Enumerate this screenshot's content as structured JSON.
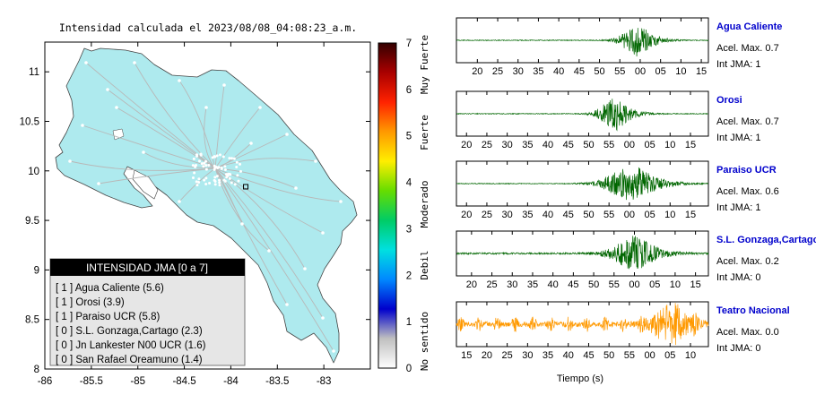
{
  "map": {
    "title": "Intensidad calculada el 2023/08/08_04:08:23_a.m.",
    "x_ticks": [
      "-86",
      "-85.5",
      "-85",
      "-84.5",
      "-84",
      "-83.5",
      "-83"
    ],
    "y_ticks": [
      "11",
      "10.5",
      "10",
      "9.5",
      "9",
      "8.5",
      "8"
    ],
    "xlim": [
      -86,
      -82.5
    ],
    "ylim": [
      8,
      11.3
    ],
    "land_color": "#aeeaee",
    "sea_color": "#ffffff",
    "station_marker": {
      "lon": -83.84,
      "lat": 9.84
    }
  },
  "colorbar": {
    "ticks": [
      "0",
      "1",
      "2",
      "3",
      "4",
      "5",
      "6",
      "7"
    ],
    "category_labels": [
      "No sentido",
      "Debil",
      "Moderado",
      "Fuerte",
      "Muy Fuerte"
    ],
    "colors": [
      "#ffffff",
      "#c0c0c0",
      "#0000cc",
      "#0088ff",
      "#00e0e0",
      "#00cc66",
      "#66dd00",
      "#ffee00",
      "#ff9900",
      "#ff2200",
      "#aa0000",
      "#330000"
    ]
  },
  "legend": {
    "title": "INTENSIDAD JMA [0 a 7]",
    "items": [
      "[ 1 ]  Agua Caliente (5.6)",
      "[ 1 ]  Orosi (3.9)",
      "[ 1 ]  Paraiso UCR (5.8)",
      "[ 0 ]  S.L. Gonzaga,Cartago (2.3)",
      "[ 0 ]  Jn Lankester N00 UCR (1.6)",
      "[ 0 ]  San Rafael Oreamuno (1.4)"
    ]
  },
  "waveforms": {
    "xlabel": "Tiempo (s)",
    "panels": [
      {
        "station": "Agua Caliente",
        "acel": "Acel. Max. 0.7",
        "int": "Int JMA: 1",
        "color": "#006600",
        "ticks": [
          "20",
          "25",
          "30",
          "35",
          "40",
          "45",
          "50",
          "55",
          "00",
          "05",
          "10",
          "15"
        ],
        "first_tick_frac": 0.083,
        "tick_step_frac": 0.0808,
        "burst_center": 0.73,
        "burst_width": 0.05,
        "amplitude": 0.85,
        "noise": 0.02,
        "periodic": false
      },
      {
        "station": "Orosi",
        "acel": "Acel. Max. 0.7",
        "int": "Int JMA: 1",
        "color": "#006600",
        "ticks": [
          "20",
          "25",
          "30",
          "35",
          "40",
          "45",
          "50",
          "55",
          "00",
          "05",
          "10",
          "15"
        ],
        "first_tick_frac": 0.04,
        "tick_step_frac": 0.0808,
        "burst_center": 0.64,
        "burst_width": 0.05,
        "amplitude": 0.8,
        "noise": 0.02,
        "periodic": false
      },
      {
        "station": "Paraiso UCR",
        "acel": "Acel. Max. 0.6",
        "int": "Int JMA: 1",
        "color": "#006600",
        "ticks": [
          "20",
          "25",
          "30",
          "35",
          "40",
          "45",
          "50",
          "55",
          "00",
          "05",
          "10",
          "15"
        ],
        "first_tick_frac": 0.04,
        "tick_step_frac": 0.0808,
        "burst_center": 0.71,
        "burst_width": 0.08,
        "amplitude": 0.9,
        "noise": 0.02,
        "periodic": false
      },
      {
        "station": "S.L. Gonzaga,Cartago",
        "acel": "Acel. Max. 0.2",
        "int": "Int JMA: 0",
        "color": "#006600",
        "ticks": [
          "20",
          "25",
          "30",
          "35",
          "40",
          "45",
          "50",
          "55",
          "00",
          "05",
          "10",
          "15"
        ],
        "first_tick_frac": 0.06,
        "tick_step_frac": 0.0808,
        "burst_center": 0.72,
        "burst_width": 0.07,
        "amplitude": 0.85,
        "noise": 0.04,
        "periodic": false
      },
      {
        "station": "Teatro Nacional",
        "acel": "Acel. Max. 0.0",
        "int": "Int JMA: 0",
        "color": "#ff9900",
        "ticks": [
          "15",
          "20",
          "25",
          "30",
          "35",
          "40",
          "45",
          "50",
          "55",
          "00",
          "05",
          "10"
        ],
        "first_tick_frac": 0.04,
        "tick_step_frac": 0.0808,
        "burst_center": 0.86,
        "burst_width": 0.06,
        "amplitude": 0.95,
        "noise": 0.12,
        "periodic": true
      }
    ]
  }
}
